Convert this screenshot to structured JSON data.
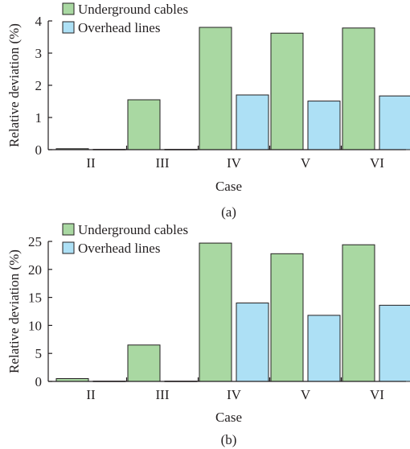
{
  "figure": {
    "panels": [
      {
        "label": "(a)"
      },
      {
        "label": "(b)"
      }
    ]
  },
  "colors": {
    "underground": "#a9d8a2",
    "overhead": "#ade0f5",
    "stroke": "#231f20"
  },
  "chart_data": [
    {
      "type": "bar",
      "categories": [
        "II",
        "III",
        "IV",
        "V",
        "VI"
      ],
      "series": [
        {
          "name": "Underground cables",
          "values": [
            0.03,
            1.55,
            3.8,
            3.62,
            3.78
          ]
        },
        {
          "name": "Overhead lines",
          "values": [
            0.01,
            0.01,
            1.7,
            1.51,
            1.67
          ]
        }
      ],
      "xlabel": "Case",
      "ylabel": "Relative deviation (%)",
      "ylim": [
        0,
        4
      ],
      "yticks": [
        0,
        1,
        2,
        3,
        4
      ],
      "grid": false,
      "legend": "top-left"
    },
    {
      "type": "bar",
      "categories": [
        "II",
        "III",
        "IV",
        "V",
        "VI"
      ],
      "series": [
        {
          "name": "Underground cables",
          "values": [
            0.5,
            6.5,
            24.7,
            22.8,
            24.4
          ]
        },
        {
          "name": "Overhead lines",
          "values": [
            0.05,
            0.05,
            14.0,
            11.8,
            13.6
          ]
        }
      ],
      "xlabel": "Case",
      "ylabel": "Relative deviation (%)",
      "ylim": [
        0,
        25
      ],
      "yticks": [
        0,
        5,
        10,
        15,
        20,
        25
      ],
      "grid": false,
      "legend": "top-left"
    }
  ]
}
